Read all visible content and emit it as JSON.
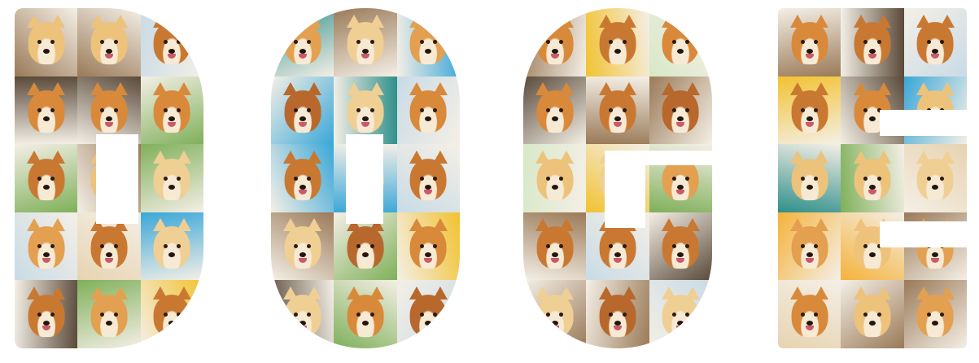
{
  "image": {
    "subject": "shiba-inu-photo-collage",
    "text_shown": "",
    "letters": [
      {
        "id": "letter-d1",
        "char": "D",
        "tile_count": 15
      },
      {
        "id": "letter-o",
        "char": "O",
        "tile_count": 15
      },
      {
        "id": "letter-g",
        "char": "G",
        "tile_count": 15
      },
      {
        "id": "letter-e",
        "char": "E",
        "tile_count": 15
      }
    ],
    "colors": {
      "background": "#ffffff",
      "fur_tones": [
        "#d9893a",
        "#e3a050",
        "#c97832",
        "#edc27a",
        "#b8682c",
        "#f0cf94"
      ],
      "tile_backgrounds": [
        "#f2c230",
        "#7fb05a",
        "#3aa7d8",
        "#e7d3b0",
        "#9a7a58",
        "#c9dbe6",
        "#5a4a3a",
        "#d8e8c8",
        "#f5b23a",
        "#2f8f8a"
      ],
      "muzzle": "#f7ead4",
      "nose": "#24160e"
    }
  }
}
